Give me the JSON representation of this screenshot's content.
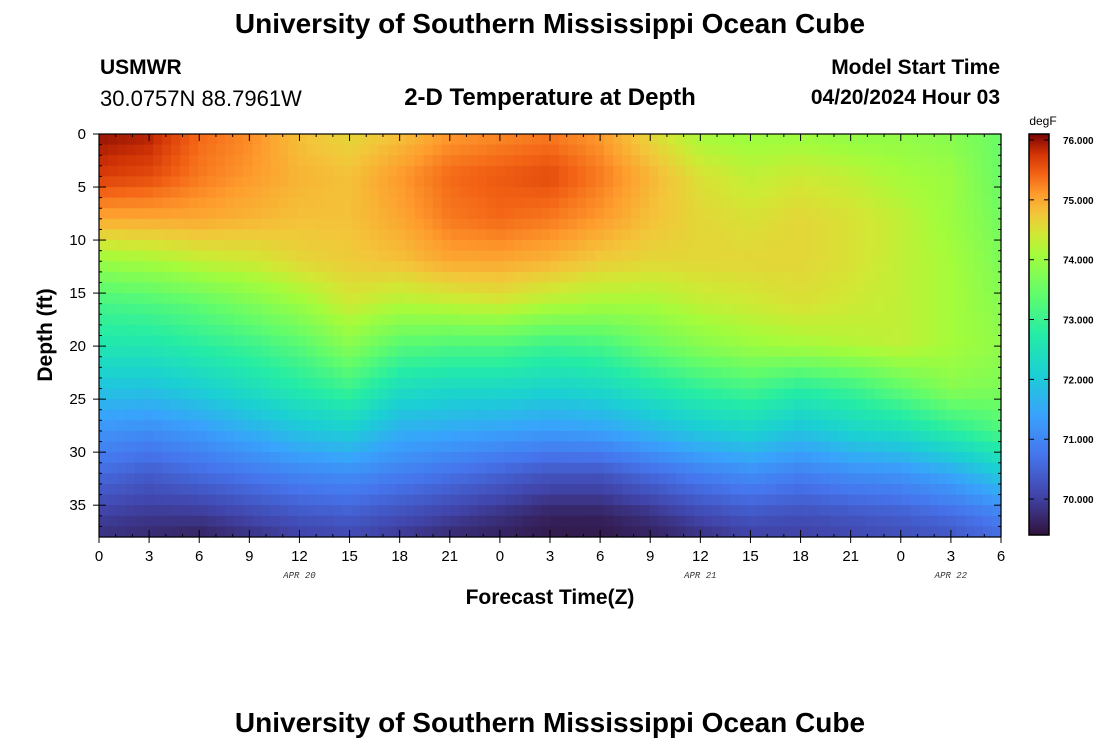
{
  "header": {
    "title": "University of Southern Mississippi Ocean Cube",
    "station_id": "USMWR",
    "station_coords": "30.0757N  88.7961W",
    "subtitle": "2-D Temperature at Depth",
    "start_label": "Model Start Time",
    "start_value": "04/20/2024 Hour 03"
  },
  "footer": {
    "title": "University of Southern Mississippi Ocean Cube"
  },
  "chart_data": {
    "type": "heatmap",
    "title": "2-D Temperature at Depth",
    "xlabel": "Forecast Time(Z)",
    "ylabel": "Depth (ft)",
    "x_range_hours": [
      0,
      54
    ],
    "y_range_ft": [
      0,
      38
    ],
    "x_tick_labels": [
      "0",
      "3",
      "6",
      "9",
      "12",
      "15",
      "18",
      "21",
      "0",
      "3",
      "6",
      "9",
      "12",
      "15",
      "18",
      "21",
      "0",
      "3",
      "6"
    ],
    "y_tick_labels": [
      "0",
      "5",
      "10",
      "15",
      "20",
      "25",
      "30",
      "35"
    ],
    "y_tick_values": [
      0,
      5,
      10,
      15,
      20,
      25,
      30,
      35
    ],
    "date_labels": [
      {
        "label": "APR 20",
        "hour": 12
      },
      {
        "label": "APR 21",
        "hour": 36
      },
      {
        "label": "APR 22",
        "hour": 51
      }
    ],
    "colorbar": {
      "unit": "degF",
      "range": [
        69.4,
        76.1
      ],
      "tick_values": [
        76.0,
        75.0,
        74.0,
        73.0,
        72.0,
        71.0,
        70.0
      ],
      "tick_labels": [
        "76.000",
        "75.000",
        "74.000",
        "73.000",
        "72.000",
        "71.000",
        "70.000"
      ]
    },
    "hours": [
      0,
      3,
      6,
      9,
      12,
      15,
      18,
      21,
      24,
      27,
      30,
      33,
      36,
      39,
      42,
      45,
      48,
      51,
      54
    ],
    "depths_ft": [
      0,
      4,
      8,
      12,
      16,
      20,
      24,
      28,
      32,
      36,
      38
    ],
    "temperature_degF": [
      [
        76.0,
        75.9,
        75.4,
        75.2,
        74.8,
        74.6,
        74.8,
        75.1,
        75.2,
        75.3,
        75.1,
        74.6,
        74.1,
        74.0,
        74.0,
        73.9,
        73.9,
        73.8,
        73.5
      ],
      [
        75.7,
        75.6,
        75.3,
        75.1,
        74.9,
        74.8,
        75.1,
        75.4,
        75.5,
        75.6,
        75.3,
        74.9,
        74.5,
        74.3,
        74.4,
        74.3,
        74.1,
        74.0,
        73.5
      ],
      [
        75.0,
        75.0,
        75.0,
        74.9,
        74.8,
        74.8,
        75.0,
        75.3,
        75.4,
        75.3,
        75.1,
        74.8,
        74.6,
        74.5,
        74.6,
        74.5,
        74.3,
        74.0,
        73.6
      ],
      [
        74.0,
        74.1,
        74.3,
        74.4,
        74.6,
        74.7,
        74.8,
        75.0,
        75.0,
        74.9,
        74.7,
        74.6,
        74.6,
        74.6,
        74.6,
        74.5,
        74.3,
        74.1,
        73.7
      ],
      [
        73.1,
        73.2,
        73.4,
        73.7,
        74.0,
        74.4,
        74.2,
        74.3,
        74.4,
        74.2,
        74.1,
        74.1,
        74.3,
        74.4,
        74.5,
        74.4,
        74.3,
        74.1,
        73.8
      ],
      [
        72.6,
        72.6,
        72.8,
        73.0,
        73.3,
        73.8,
        73.3,
        73.2,
        73.2,
        73.0,
        73.1,
        73.5,
        73.8,
        74.0,
        74.1,
        74.2,
        74.3,
        74.1,
        73.9
      ],
      [
        71.9,
        71.9,
        72.1,
        72.4,
        72.7,
        73.0,
        72.4,
        72.3,
        72.3,
        72.2,
        72.3,
        72.6,
        72.9,
        73.1,
        72.8,
        73.0,
        73.4,
        73.8,
        73.7
      ],
      [
        71.2,
        71.1,
        71.3,
        71.6,
        71.9,
        72.1,
        71.6,
        71.5,
        71.4,
        71.3,
        71.4,
        71.7,
        72.0,
        72.2,
        71.9,
        72.2,
        72.4,
        72.8,
        73.2
      ],
      [
        70.6,
        70.4,
        70.6,
        70.8,
        71.0,
        71.1,
        70.9,
        70.7,
        70.5,
        70.3,
        70.3,
        70.6,
        70.9,
        71.1,
        70.9,
        71.1,
        71.2,
        71.5,
        72.0
      ],
      [
        70.0,
        69.9,
        69.9,
        70.1,
        70.3,
        70.4,
        70.2,
        70.0,
        69.8,
        69.6,
        69.6,
        69.8,
        70.1,
        70.3,
        70.2,
        70.3,
        70.4,
        70.6,
        70.9
      ],
      [
        69.8,
        69.7,
        69.6,
        69.8,
        70.0,
        70.1,
        69.9,
        69.7,
        69.6,
        69.5,
        69.5,
        69.6,
        69.8,
        70.0,
        70.0,
        70.1,
        70.2,
        70.3,
        70.6
      ]
    ]
  }
}
